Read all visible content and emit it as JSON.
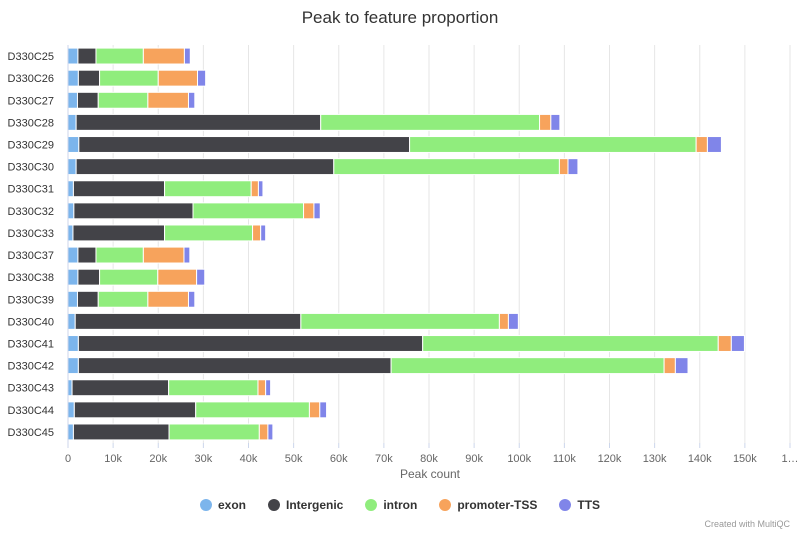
{
  "chart_data": {
    "type": "bar",
    "orientation": "horizontal",
    "stacked": true,
    "title": "Peak to feature proportion",
    "xlabel": "Peak count",
    "ylabel": "",
    "xlim": [
      0,
      160000
    ],
    "x_ticks": [
      "0",
      "10k",
      "20k",
      "30k",
      "40k",
      "50k",
      "60k",
      "70k",
      "80k",
      "90k",
      "100k",
      "110k",
      "120k",
      "130k",
      "140k",
      "150k",
      "1…"
    ],
    "grid": true,
    "legend_position": "bottom",
    "categories": [
      "D330C25",
      "D330C26",
      "D330C27",
      "D330C28",
      "D330C29",
      "D330C30",
      "D330C31",
      "D330C32",
      "D330C33",
      "D330C37",
      "D330C38",
      "D330C39",
      "D330C40",
      "D330C41",
      "D330C42",
      "D330C43",
      "D330C44",
      "D330C45"
    ],
    "series": [
      {
        "name": "exon",
        "color": "#7cb5ec",
        "values": [
          2200,
          2300,
          2100,
          1800,
          2400,
          1800,
          1200,
          1300,
          1100,
          2200,
          2200,
          2100,
          1600,
          2300,
          2300,
          900,
          1400,
          1200
        ]
      },
      {
        "name": "Intergenic",
        "color": "#434348",
        "values": [
          4000,
          4700,
          4600,
          54200,
          73300,
          57100,
          20200,
          26400,
          20300,
          4000,
          4800,
          4600,
          50000,
          76300,
          69300,
          21400,
          26900,
          21200
        ]
      },
      {
        "name": "intron",
        "color": "#90ed7d",
        "values": [
          10500,
          13000,
          11000,
          48500,
          63500,
          50000,
          19200,
          24500,
          19500,
          10500,
          12900,
          11000,
          44000,
          65500,
          60500,
          19800,
          25200,
          20000
        ]
      },
      {
        "name": "promoter-TSS",
        "color": "#f7a35c",
        "values": [
          9100,
          8700,
          9000,
          2500,
          2500,
          1900,
          1600,
          2300,
          1800,
          9000,
          8600,
          9000,
          2000,
          2900,
          2500,
          1700,
          2300,
          1900
        ]
      },
      {
        "name": "TTS",
        "color": "#8085e9",
        "values": [
          1300,
          1800,
          1400,
          2000,
          3100,
          2200,
          1000,
          1400,
          1100,
          1300,
          1800,
          1400,
          2200,
          2900,
          2800,
          1100,
          1500,
          1100
        ]
      }
    ]
  },
  "credit": "Created with MultiQC"
}
